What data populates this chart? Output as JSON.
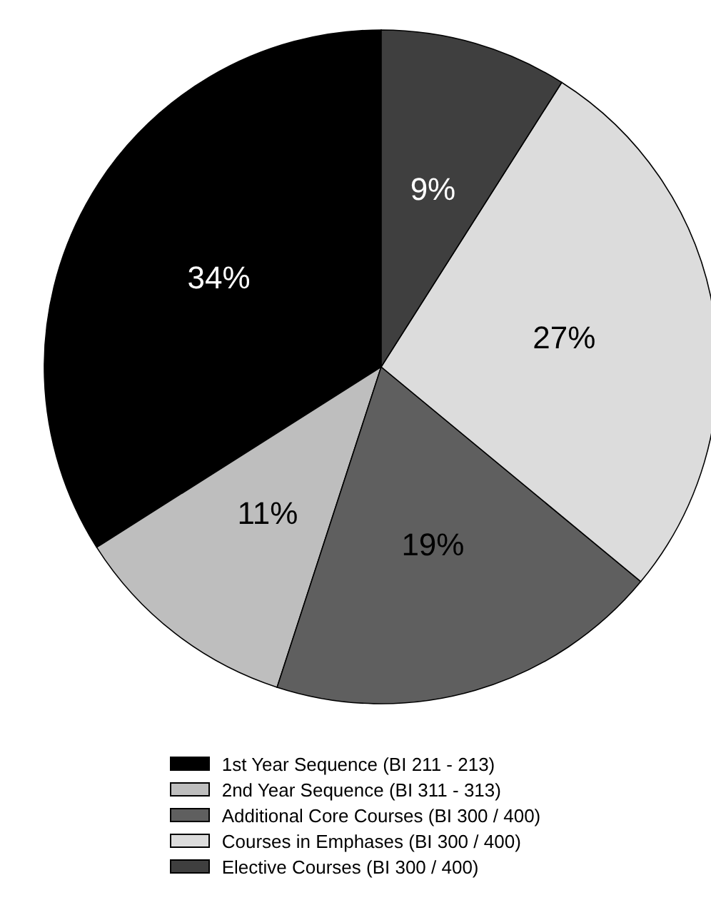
{
  "chart_data": {
    "type": "pie",
    "categories": [
      "1st Year Sequence (BI 211 - 213)",
      "2nd Year Sequence (BI 311 - 313)",
      "Additional Core Courses (BI 300 / 400)",
      "Courses in Emphases (BI 300 / 400)",
      "Elective Courses (BI 300 / 400)"
    ],
    "values": [
      34,
      11,
      19,
      27,
      9
    ],
    "value_labels": [
      "34%",
      "11%",
      "19%",
      "27%",
      "9%"
    ],
    "colors": [
      "#000000",
      "#bebebe",
      "#5f5f5f",
      "#dcdcdc",
      "#3f3f3f"
    ],
    "legend": "bottom"
  }
}
